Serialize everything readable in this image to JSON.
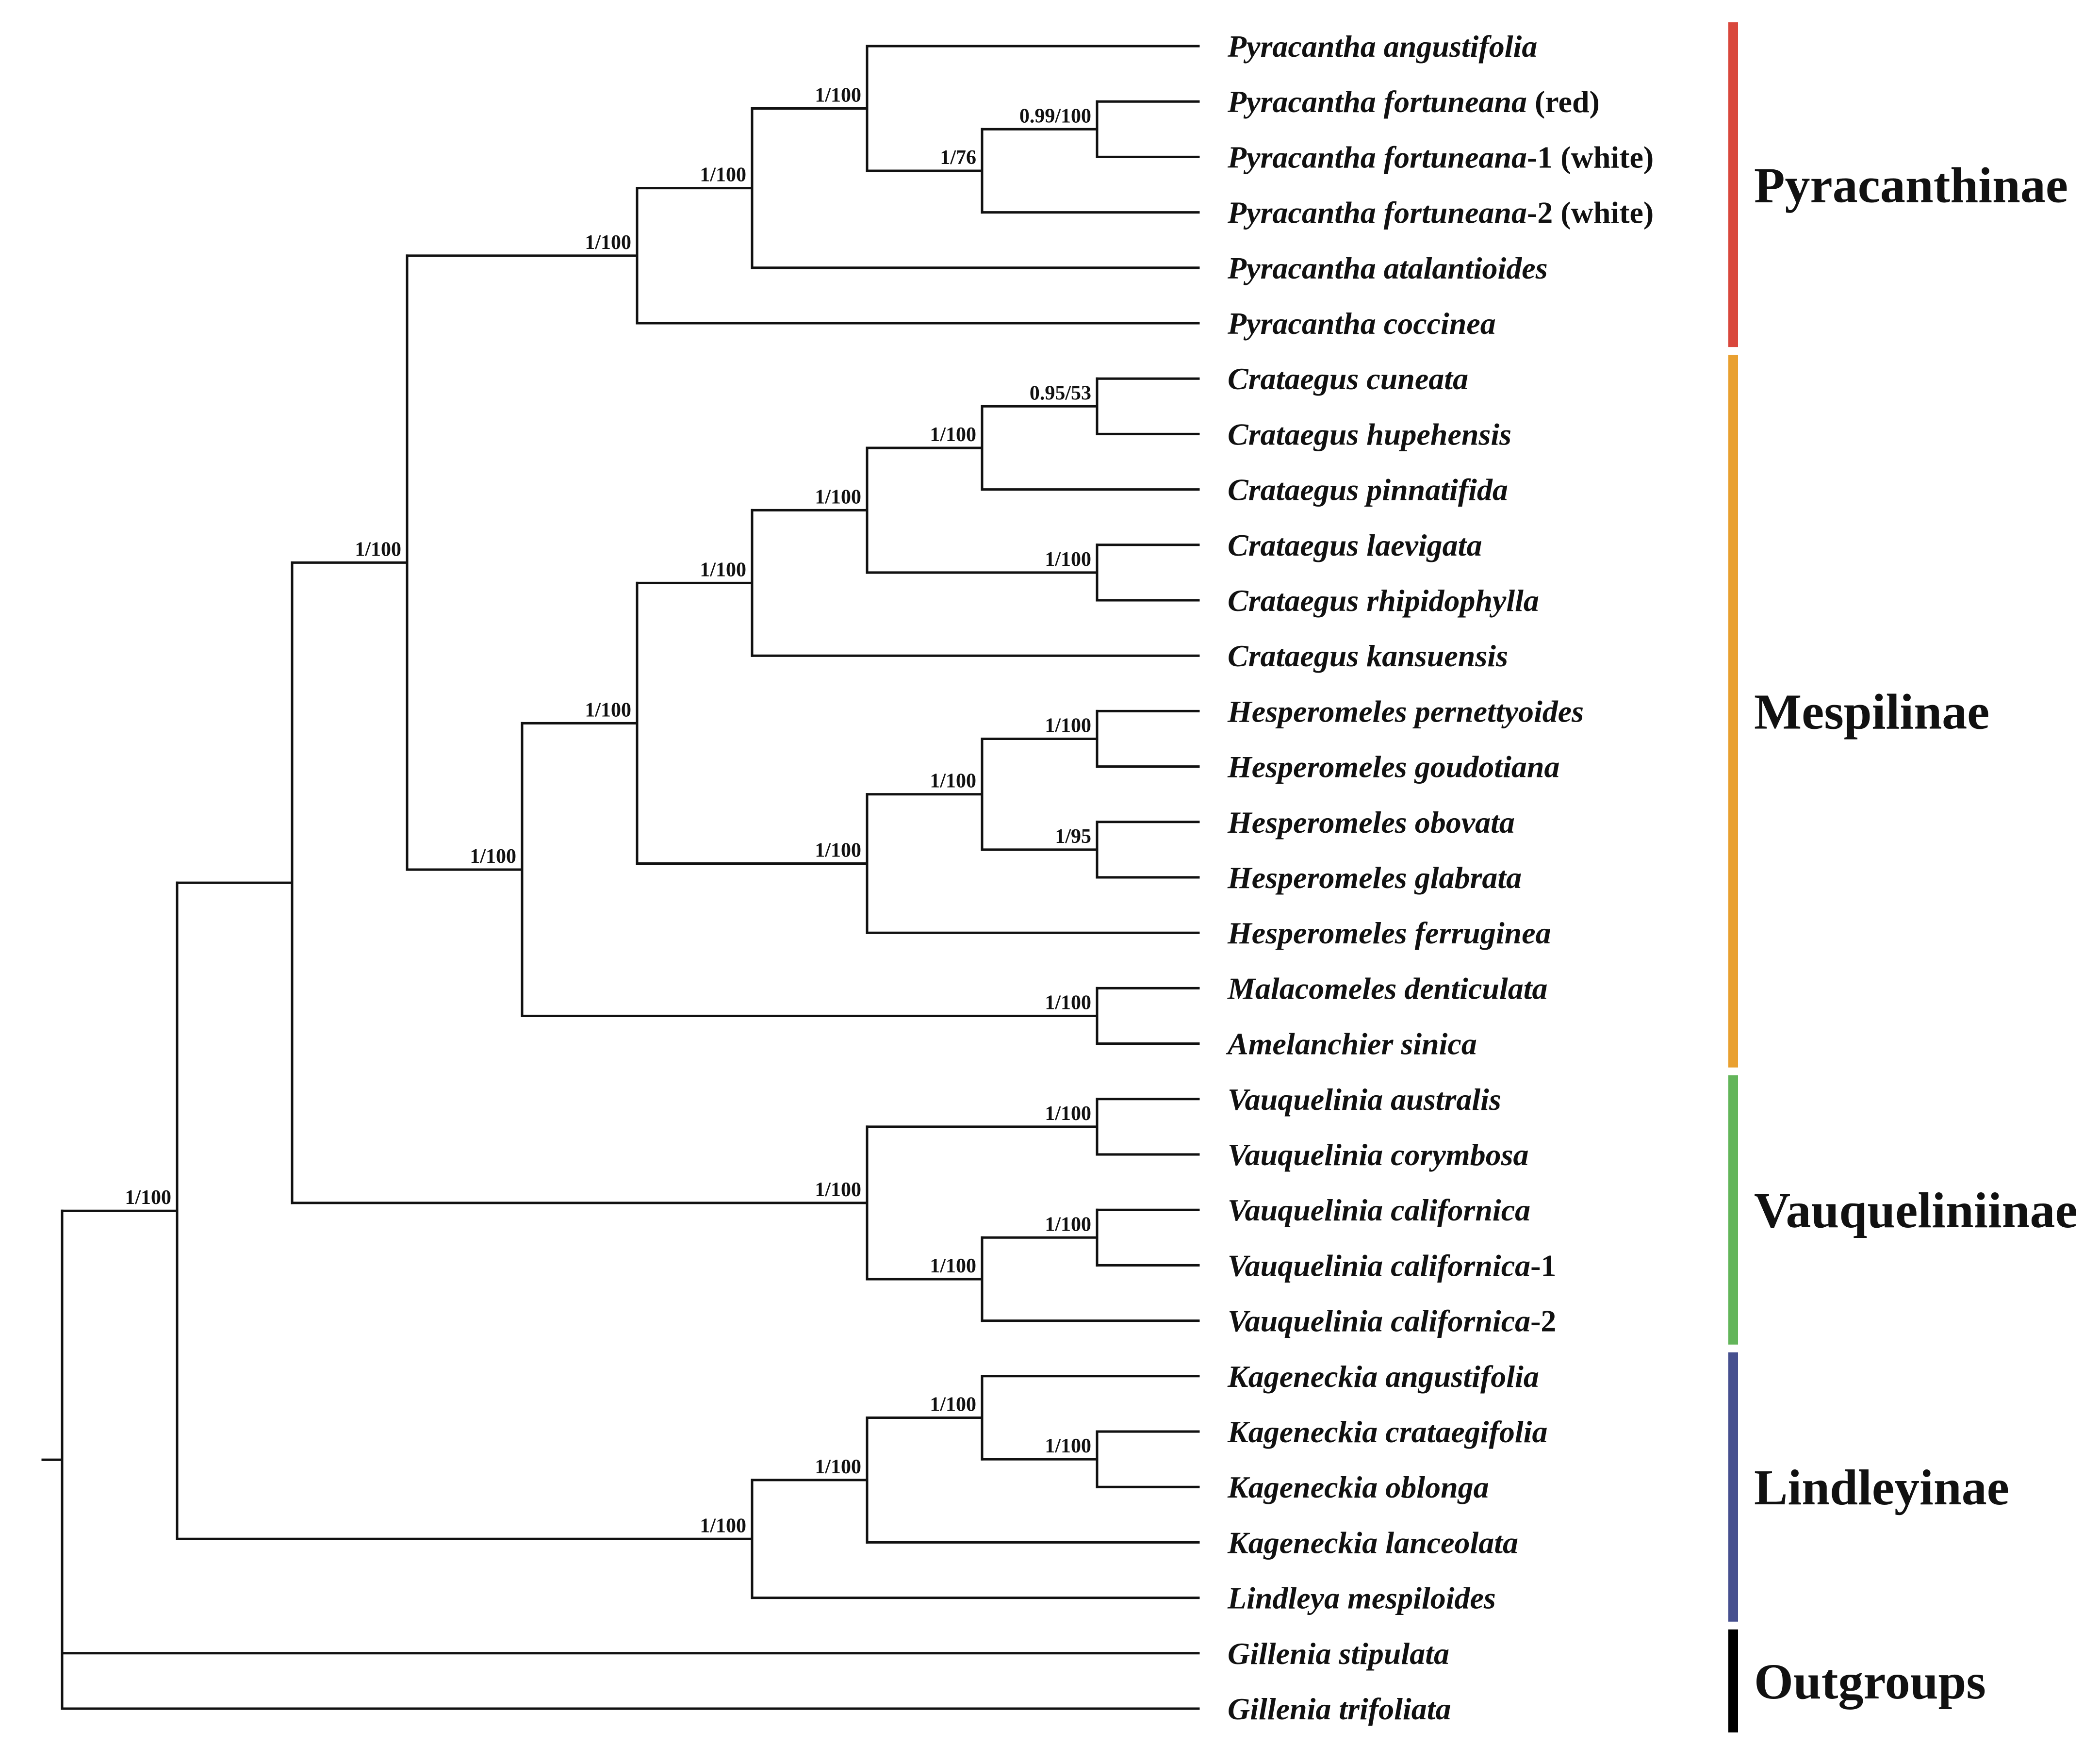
{
  "taxa": [
    {
      "id": "t1",
      "name": "Pyracantha angustifolia",
      "suffix": ""
    },
    {
      "id": "t2",
      "name": "Pyracantha fortuneana",
      "suffix": " (red)"
    },
    {
      "id": "t3",
      "name": "Pyracantha fortuneana",
      "suffix": "-1 (white)"
    },
    {
      "id": "t4",
      "name": "Pyracantha fortuneana",
      "suffix": "-2 (white)"
    },
    {
      "id": "t5",
      "name": "Pyracantha atalantioides",
      "suffix": ""
    },
    {
      "id": "t6",
      "name": "Pyracantha coccinea",
      "suffix": ""
    },
    {
      "id": "t7",
      "name": "Crataegus cuneata",
      "suffix": ""
    },
    {
      "id": "t8",
      "name": "Crataegus hupehensis",
      "suffix": ""
    },
    {
      "id": "t9",
      "name": "Crataegus pinnatifida",
      "suffix": ""
    },
    {
      "id": "t10",
      "name": "Crataegus laevigata",
      "suffix": ""
    },
    {
      "id": "t11",
      "name": "Crataegus rhipidophylla",
      "suffix": ""
    },
    {
      "id": "t12",
      "name": "Crataegus kansuensis",
      "suffix": ""
    },
    {
      "id": "t13",
      "name": "Hesperomeles pernettyoides",
      "suffix": ""
    },
    {
      "id": "t14",
      "name": "Hesperomeles goudotiana",
      "suffix": ""
    },
    {
      "id": "t15",
      "name": "Hesperomeles obovata",
      "suffix": ""
    },
    {
      "id": "t16",
      "name": "Hesperomeles glabrata",
      "suffix": ""
    },
    {
      "id": "t17",
      "name": "Hesperomeles ferruginea",
      "suffix": ""
    },
    {
      "id": "t18",
      "name": "Malacomeles denticulata",
      "suffix": ""
    },
    {
      "id": "t19",
      "name": "Amelanchier sinica",
      "suffix": ""
    },
    {
      "id": "t20",
      "name": "Vauquelinia australis",
      "suffix": ""
    },
    {
      "id": "t21",
      "name": "Vauquelinia corymbosa",
      "suffix": ""
    },
    {
      "id": "t22",
      "name": "Vauquelinia californica",
      "suffix": ""
    },
    {
      "id": "t23",
      "name": "Vauquelinia californica",
      "suffix": "-1"
    },
    {
      "id": "t24",
      "name": "Vauquelinia californica",
      "suffix": "-2"
    },
    {
      "id": "t25",
      "name": "Kageneckia angustifolia",
      "suffix": ""
    },
    {
      "id": "t26",
      "name": "Kageneckia crataegifolia",
      "suffix": ""
    },
    {
      "id": "t27",
      "name": "Kageneckia oblonga",
      "suffix": ""
    },
    {
      "id": "t28",
      "name": "Kageneckia lanceolata",
      "suffix": ""
    },
    {
      "id": "t29",
      "name": "Lindleya mespiloides",
      "suffix": ""
    },
    {
      "id": "t30",
      "name": "Gillenia stipulata",
      "suffix": ""
    },
    {
      "id": "t31",
      "name": "Gillenia trifoliata",
      "suffix": ""
    }
  ],
  "nodes": [
    {
      "id": "root",
      "depth": 0,
      "children": [
        "n_ingroup",
        "t30",
        "t31"
      ],
      "support": ""
    },
    {
      "id": "n_ingroup",
      "depth": 1,
      "children": [
        "n_core",
        "n_lind"
      ],
      "support": "1/100"
    },
    {
      "id": "n_core",
      "depth": 2,
      "children": [
        "n_pm",
        "n_vauq"
      ],
      "support": ""
    },
    {
      "id": "n_pm",
      "depth": 3,
      "children": [
        "n_pyr",
        "n_mesp"
      ],
      "support": "1/100"
    },
    {
      "id": "n_pyr",
      "depth": 5,
      "children": [
        "n_pyr2",
        "t6"
      ],
      "support": "1/100"
    },
    {
      "id": "n_pyr2",
      "depth": 6,
      "children": [
        "n_pyr3",
        "t5"
      ],
      "support": "1/100"
    },
    {
      "id": "n_pyr3",
      "depth": 7,
      "children": [
        "t1",
        "n_pyr4"
      ],
      "support": "1/100"
    },
    {
      "id": "n_pyr4",
      "depth": 8,
      "children": [
        "n_pyr5",
        "t4"
      ],
      "support": "1/76"
    },
    {
      "id": "n_pyr5",
      "depth": 9,
      "children": [
        "t2",
        "t3"
      ],
      "support": "0.99/100"
    },
    {
      "id": "n_mesp",
      "depth": 4,
      "children": [
        "n_ch",
        "n_ma"
      ],
      "support": "1/100"
    },
    {
      "id": "n_ch",
      "depth": 5,
      "children": [
        "n_crat",
        "n_hesp"
      ],
      "support": "1/100"
    },
    {
      "id": "n_crat",
      "depth": 6,
      "children": [
        "n_crat2",
        "t12"
      ],
      "support": "1/100"
    },
    {
      "id": "n_crat2",
      "depth": 7,
      "children": [
        "n_crat3",
        "n_crat4"
      ],
      "support": "1/100"
    },
    {
      "id": "n_crat3",
      "depth": 8,
      "children": [
        "n_crat5",
        "t9"
      ],
      "support": "1/100"
    },
    {
      "id": "n_crat5",
      "depth": 9,
      "children": [
        "t7",
        "t8"
      ],
      "support": "0.95/53"
    },
    {
      "id": "n_crat4",
      "depth": 9,
      "children": [
        "t10",
        "t11"
      ],
      "support": "1/100"
    },
    {
      "id": "n_hesp",
      "depth": 7,
      "children": [
        "n_hesp2",
        "t17"
      ],
      "support": "1/100"
    },
    {
      "id": "n_hesp2",
      "depth": 8,
      "children": [
        "n_hesp3",
        "n_hesp4"
      ],
      "support": "1/100"
    },
    {
      "id": "n_hesp3",
      "depth": 9,
      "children": [
        "t13",
        "t14"
      ],
      "support": "1/100"
    },
    {
      "id": "n_hesp4",
      "depth": 9,
      "children": [
        "t15",
        "t16"
      ],
      "support": "1/95"
    },
    {
      "id": "n_ma",
      "depth": 9,
      "children": [
        "t18",
        "t19"
      ],
      "support": "1/100"
    },
    {
      "id": "n_vauq",
      "depth": 7,
      "children": [
        "n_vauq2",
        "n_vauq3"
      ],
      "support": "1/100"
    },
    {
      "id": "n_vauq2",
      "depth": 9,
      "children": [
        "t20",
        "t21"
      ],
      "support": "1/100"
    },
    {
      "id": "n_vauq3",
      "depth": 8,
      "children": [
        "n_vauq4",
        "t24"
      ],
      "support": "1/100"
    },
    {
      "id": "n_vauq4",
      "depth": 9,
      "children": [
        "t22",
        "t23"
      ],
      "support": "1/100"
    },
    {
      "id": "n_lind",
      "depth": 6,
      "children": [
        "n_kag",
        "t29"
      ],
      "support": "1/100"
    },
    {
      "id": "n_kag",
      "depth": 7,
      "children": [
        "n_kag2",
        "t28"
      ],
      "support": "1/100"
    },
    {
      "id": "n_kag2",
      "depth": 8,
      "children": [
        "t25",
        "n_kag3"
      ],
      "support": "1/100"
    },
    {
      "id": "n_kag3",
      "depth": 9,
      "children": [
        "t26",
        "t27"
      ],
      "support": "1/100"
    }
  ],
  "clades": [
    {
      "name": "Pyracanthinae",
      "from": 1,
      "to": 6,
      "color": "#d9473c"
    },
    {
      "name": "Mespilinae",
      "from": 7,
      "to": 19,
      "color": "#e9a030"
    },
    {
      "name": "Vauqueliniinae",
      "from": 20,
      "to": 24,
      "color": "#63b55a"
    },
    {
      "name": "Lindleyinae",
      "from": 25,
      "to": 29,
      "color": "#46508f"
    },
    {
      "name": "Outgroups",
      "from": 30,
      "to": 31,
      "color": "#000000"
    }
  ]
}
